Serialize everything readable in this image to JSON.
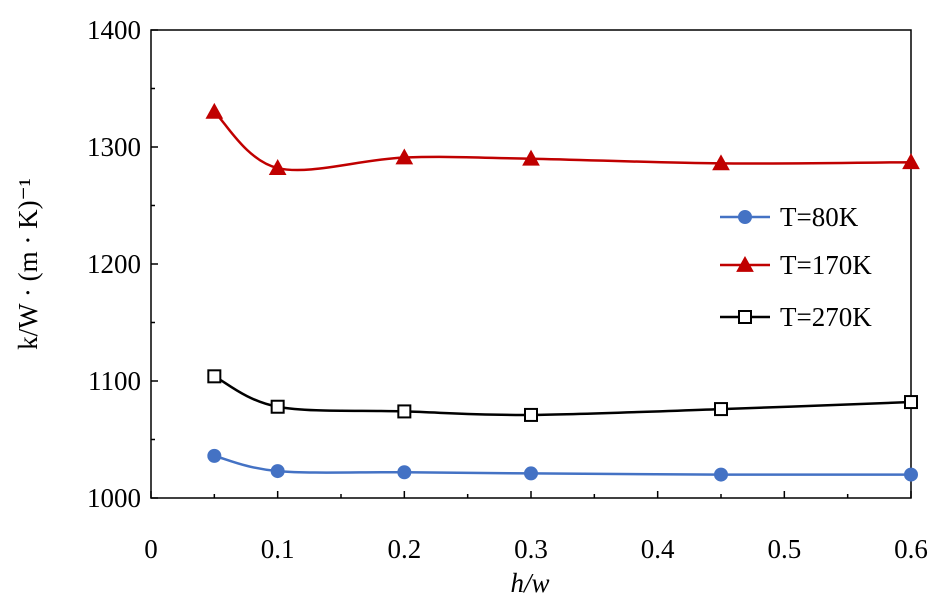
{
  "chart_data": {
    "type": "line",
    "xlabel": "h/w",
    "ylabel": "k/W · (m · K)⁻¹",
    "xlim": [
      0,
      0.6
    ],
    "ylim": [
      1000,
      1400
    ],
    "xticks": [
      "0",
      "0.1",
      "0.2",
      "0.3",
      "0.4",
      "0.5",
      "0.6"
    ],
    "yticks": [
      "1000",
      "1100",
      "1200",
      "1300",
      "1400"
    ],
    "grid": false,
    "legend_position": "right",
    "series": [
      {
        "name": "T=80K",
        "color": "#4472c4",
        "marker": "filled-circle",
        "x": [
          0.05,
          0.1,
          0.2,
          0.3,
          0.45,
          0.6
        ],
        "y": [
          1036,
          1023,
          1022,
          1021,
          1020,
          1020
        ]
      },
      {
        "name": "T=170K",
        "color": "#c00000",
        "marker": "filled-triangle",
        "x": [
          0.05,
          0.1,
          0.2,
          0.3,
          0.45,
          0.6
        ],
        "y": [
          1330,
          1282,
          1291,
          1290,
          1286,
          1287
        ]
      },
      {
        "name": "T=270K",
        "color": "#000000",
        "marker": "open-square",
        "x": [
          0.05,
          0.1,
          0.2,
          0.3,
          0.45,
          0.6
        ],
        "y": [
          1104,
          1078,
          1074,
          1071,
          1076,
          1082
        ]
      }
    ]
  }
}
